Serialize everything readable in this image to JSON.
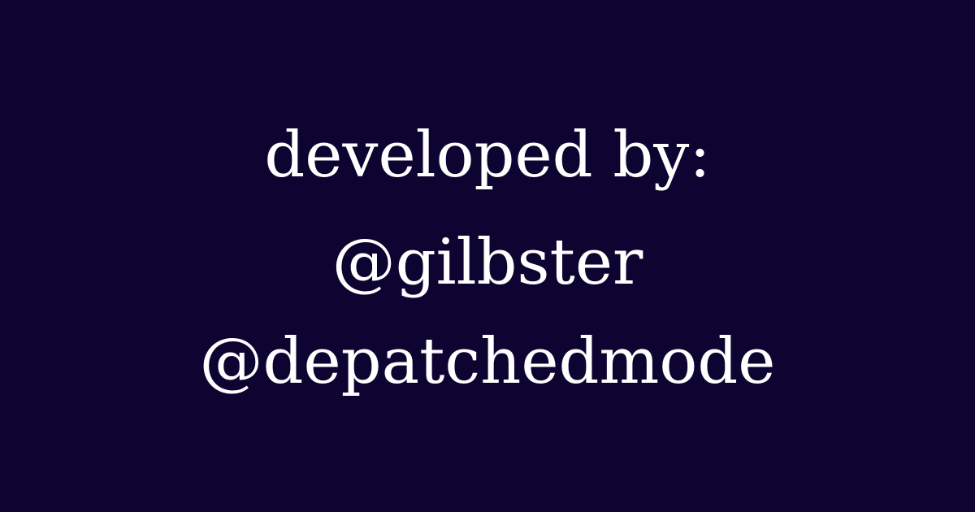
{
  "card": {
    "background": "#0e0432",
    "text_color": "#ffffff",
    "heading": "developed by:",
    "handles": [
      "@gilbster",
      "@depatchedmode"
    ]
  }
}
